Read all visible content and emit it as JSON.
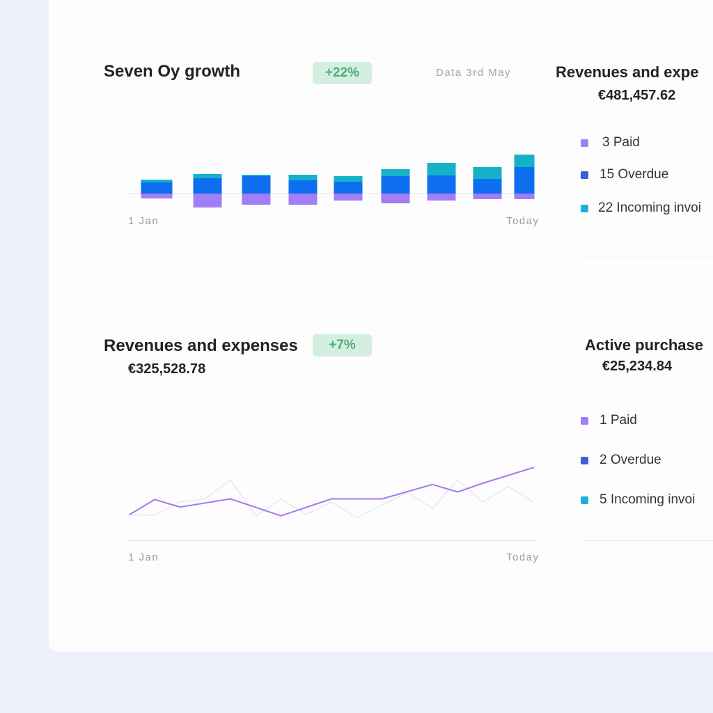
{
  "colors": {
    "paid": "#a17ef5",
    "overdue": "#0d6ff0",
    "incoming": "#13b2c9",
    "overdue_dot": "#3f5fd4",
    "incoming_dot": "#19b0db",
    "line_primary": "#a878ee",
    "line_secondary": "#e8e8f0",
    "badge_bg": "#d4efdf",
    "badge_text": "#4caf7a"
  },
  "growth": {
    "title": "Seven Oy growth",
    "badge": "+22%",
    "date_label": "Data 3rd May",
    "axis_start": "1 Jan",
    "axis_end": "Today"
  },
  "revenue_panel_top": {
    "title": "Revenues and expe",
    "amount": "€481,457.62",
    "legend": [
      {
        "label": "3 Paid",
        "icon": "purple-square"
      },
      {
        "label": "15 Overdue",
        "icon": "blue-square"
      },
      {
        "label": "22 Incoming invoi",
        "icon": "cyan-square"
      }
    ]
  },
  "revenues": {
    "title": "Revenues and expenses",
    "badge": "+7%",
    "amount": "€325,528.78",
    "axis_start": "1 Jan",
    "axis_end": "Today"
  },
  "purchases_panel": {
    "title": "Active purchase",
    "amount": "€25,234.84",
    "legend": [
      {
        "label": "1 Paid",
        "icon": "purple-square"
      },
      {
        "label": "2 Overdue",
        "icon": "blue-square"
      },
      {
        "label": "5 Incoming invoi",
        "icon": "cyan-square"
      }
    ]
  },
  "chart_data": [
    {
      "type": "bar",
      "title": "Seven Oy growth",
      "categories": [
        "1",
        "2",
        "3",
        "4",
        "5",
        "6",
        "7",
        "8",
        "9"
      ],
      "x_labels": [
        "1 Jan",
        "Today"
      ],
      "series": [
        {
          "name": "Paid",
          "values": [
            -7,
            -20,
            -16,
            -16,
            -10,
            -14,
            -10,
            -8,
            -8
          ],
          "color": "#a17ef5"
        },
        {
          "name": "Overdue",
          "values": [
            16,
            22,
            25,
            19,
            17,
            25,
            26,
            21,
            38
          ],
          "color": "#0d6ff0"
        },
        {
          "name": "Incoming",
          "values": [
            4,
            6,
            2,
            8,
            8,
            10,
            18,
            17,
            18
          ],
          "color": "#13b2c9"
        }
      ],
      "grid": false
    },
    {
      "type": "line",
      "title": "Revenues and expenses",
      "x": [
        0,
        1,
        2,
        3,
        4,
        5,
        6,
        7,
        8,
        9,
        10,
        11,
        12,
        13,
        14,
        15,
        16
      ],
      "x_labels": [
        "1 Jan",
        "Today"
      ],
      "series": [
        {
          "name": "Revenues",
          "color": "#a878ee",
          "points": [
            [
              0,
              0
            ],
            [
              1,
              24
            ],
            [
              2,
              12
            ],
            [
              4,
              25
            ],
            [
              6,
              -2
            ],
            [
              8,
              25
            ],
            [
              10,
              25
            ],
            [
              12,
              48
            ],
            [
              13,
              36
            ],
            [
              14,
              50
            ],
            [
              16,
              75
            ]
          ]
        },
        {
          "name": "Expenses",
          "color": "#e8e8f0",
          "points": [
            [
              0,
              0
            ],
            [
              1,
              -1
            ],
            [
              2,
              20
            ],
            [
              3,
              25
            ],
            [
              4,
              55
            ],
            [
              5,
              -2
            ],
            [
              6,
              25
            ],
            [
              7,
              0
            ],
            [
              8,
              20
            ],
            [
              9,
              -5
            ],
            [
              11,
              35
            ],
            [
              12,
              10
            ],
            [
              13,
              55
            ],
            [
              14,
              20
            ],
            [
              15,
              45
            ],
            [
              16,
              20
            ]
          ]
        }
      ],
      "grid": false
    }
  ]
}
